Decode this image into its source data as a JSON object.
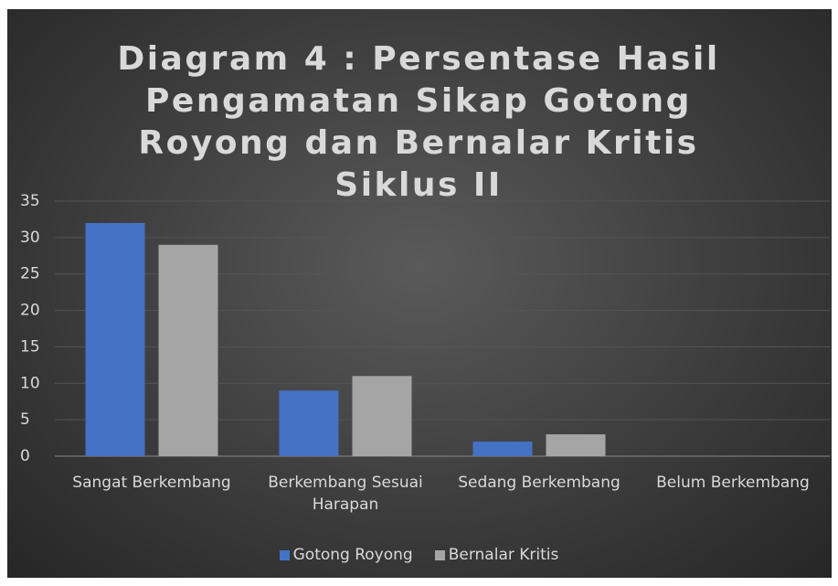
{
  "chart_data": {
    "type": "bar",
    "title": "Diagram 4 : Persentase Hasil Pengamatan Sikap Gotong Royong dan Bernalar Kritis Siklus II",
    "categories": [
      "Sangat Berkembang",
      "Berkembang Sesuai Harapan",
      "Sedang Berkembang",
      "Belum Berkembang"
    ],
    "series": [
      {
        "name": "Gotong Royong",
        "color": "#4472c4",
        "values": [
          32,
          9,
          2,
          0
        ]
      },
      {
        "name": "Bernalar Kritis",
        "color": "#a5a5a5",
        "values": [
          29,
          11,
          3,
          0
        ]
      }
    ],
    "ylim": [
      0,
      35
    ],
    "yticks": [
      0,
      5,
      10,
      15,
      20,
      25,
      30,
      35
    ],
    "grid": true,
    "legend": "bottom"
  }
}
